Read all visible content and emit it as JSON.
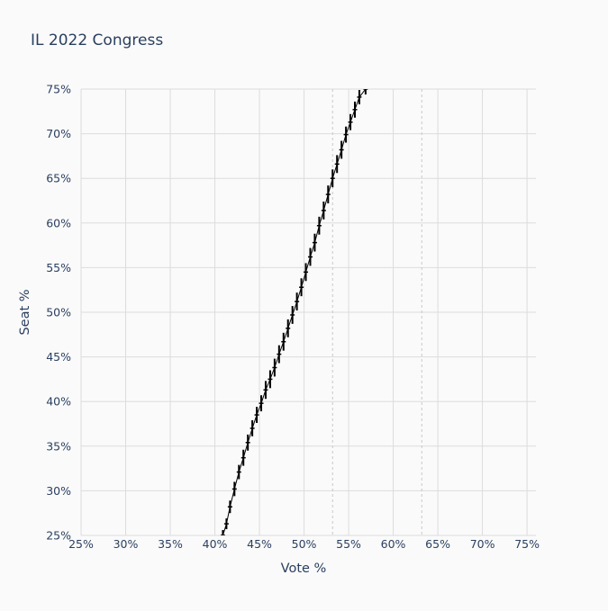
{
  "chart_data": {
    "type": "line",
    "title": "IL 2022 Congress",
    "xlabel": "Vote %",
    "ylabel": "Seat %",
    "xlim": [
      0.25,
      0.76
    ],
    "ylim": [
      0.25,
      0.75
    ],
    "x_ticks": [
      0.25,
      0.3,
      0.35,
      0.4,
      0.45,
      0.5,
      0.55,
      0.6,
      0.65,
      0.7,
      0.75
    ],
    "x_tick_labels": [
      "25%",
      "30%",
      "35%",
      "40%",
      "45%",
      "50%",
      "55%",
      "60%",
      "65%",
      "70%",
      "75%"
    ],
    "y_ticks": [
      0.25,
      0.3,
      0.35,
      0.4,
      0.45,
      0.5,
      0.55,
      0.6,
      0.65,
      0.7,
      0.75
    ],
    "y_tick_labels": [
      "25%",
      "30%",
      "35%",
      "40%",
      "45%",
      "50%",
      "55%",
      "60%",
      "65%",
      "70%",
      "75%"
    ],
    "grid": true,
    "reference_lines_x": [
      0.532,
      0.632
    ],
    "series": [
      {
        "color": "#000000",
        "x": [
          0.409,
          0.413,
          0.417,
          0.422,
          0.427,
          0.432,
          0.437,
          0.442,
          0.447,
          0.452,
          0.457,
          0.462,
          0.467,
          0.472,
          0.477,
          0.482,
          0.487,
          0.492,
          0.497,
          0.502,
          0.507,
          0.512,
          0.517,
          0.522,
          0.527,
          0.532,
          0.537,
          0.542,
          0.547,
          0.552,
          0.557,
          0.562,
          0.569
        ],
        "y": [
          0.25,
          0.263,
          0.282,
          0.302,
          0.321,
          0.337,
          0.354,
          0.37,
          0.385,
          0.398,
          0.413,
          0.425,
          0.438,
          0.453,
          0.467,
          0.482,
          0.497,
          0.512,
          0.528,
          0.545,
          0.562,
          0.578,
          0.597,
          0.614,
          0.632,
          0.65,
          0.666,
          0.682,
          0.699,
          0.713,
          0.727,
          0.741,
          0.75
        ],
        "error_y": [
          0.006,
          0.006,
          0.007,
          0.008,
          0.008,
          0.009,
          0.009,
          0.009,
          0.009,
          0.009,
          0.01,
          0.01,
          0.01,
          0.01,
          0.01,
          0.01,
          0.01,
          0.01,
          0.01,
          0.01,
          0.01,
          0.01,
          0.01,
          0.01,
          0.01,
          0.01,
          0.01,
          0.01,
          0.009,
          0.009,
          0.009,
          0.008,
          0.006
        ]
      }
    ]
  }
}
